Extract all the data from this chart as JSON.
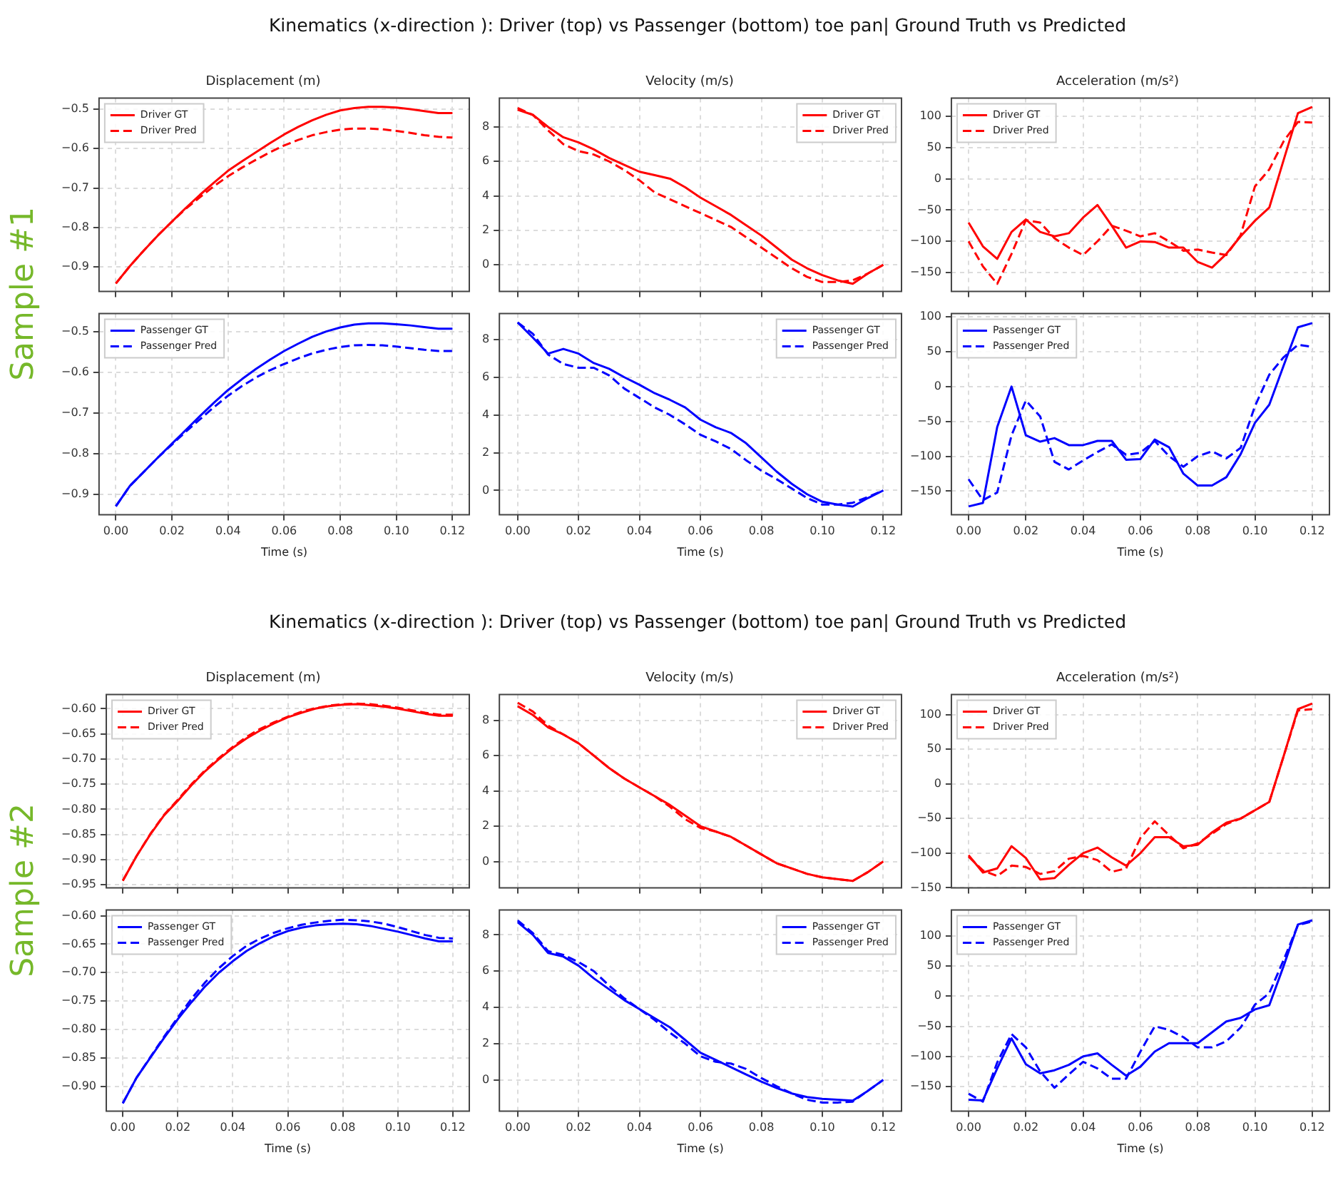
{
  "chart_data": [
    {
      "type": "line",
      "title": "Displacement (m)",
      "annotations": [
        "Kinematics (x-direction ): Driver (top) vs Passenger (bottom) toe pan| Ground Truth vs Predicted",
        "Sample #1"
      ],
      "x": [
        0,
        0.005,
        0.01,
        0.015,
        0.02,
        0.025,
        0.03,
        0.035,
        0.04,
        0.045,
        0.05,
        0.055,
        0.06,
        0.065,
        0.07,
        0.075,
        0.08,
        0.085,
        0.09,
        0.095,
        0.1,
        0.105,
        0.11,
        0.115,
        0.12
      ],
      "xlim": [
        -0.006,
        0.126
      ],
      "tick_labels": "y",
      "ylim": [
        -0.962,
        -0.472
      ],
      "yticks": [
        {
          "value": -0.9,
          "label": "−0.9"
        },
        {
          "value": -0.8,
          "label": "−0.8"
        },
        {
          "value": -0.7,
          "label": "−0.7"
        },
        {
          "value": -0.6,
          "label": "−0.6"
        },
        {
          "value": -0.5,
          "label": "−0.5"
        }
      ],
      "grid": true,
      "legend": "top left",
      "series": [
        {
          "name": "Driver GT",
          "color": "#ff0000",
          "line_style": "solid",
          "values": [
            -0.942,
            -0.898,
            -0.858,
            -0.82,
            -0.785,
            -0.75,
            -0.717,
            -0.686,
            -0.656,
            -0.632,
            -0.609,
            -0.586,
            -0.564,
            -0.545,
            -0.528,
            -0.514,
            -0.503,
            -0.497,
            -0.494,
            -0.494,
            -0.496,
            -0.5,
            -0.505,
            -0.51,
            -0.51
          ]
        },
        {
          "name": "Driver Pred",
          "color": "#ff0000",
          "line_style": "dashed",
          "values": [
            -0.942,
            -0.898,
            -0.858,
            -0.82,
            -0.785,
            -0.752,
            -0.723,
            -0.695,
            -0.67,
            -0.648,
            -0.628,
            -0.609,
            -0.592,
            -0.578,
            -0.566,
            -0.558,
            -0.552,
            -0.549,
            -0.549,
            -0.551,
            -0.555,
            -0.56,
            -0.566,
            -0.57,
            -0.572
          ]
        }
      ]
    },
    {
      "type": "line",
      "title": "Velocity (m/s)",
      "x": [
        0,
        0.005,
        0.01,
        0.015,
        0.02,
        0.025,
        0.03,
        0.035,
        0.04,
        0.045,
        0.05,
        0.055,
        0.06,
        0.065,
        0.07,
        0.075,
        0.08,
        0.085,
        0.09,
        0.095,
        0.1,
        0.105,
        0.11,
        0.115,
        0.12
      ],
      "xlim": [
        -0.006,
        0.126
      ],
      "tick_labels": "y",
      "ylim": [
        -1.54,
        9.67
      ],
      "yticks": [
        0,
        2,
        4,
        6,
        8
      ],
      "grid": true,
      "legend": "top right",
      "series": [
        {
          "name": "Driver GT",
          "color": "#ff0000",
          "line_style": "solid",
          "values": [
            9.0,
            8.7,
            8.0,
            7.4,
            7.1,
            6.7,
            6.2,
            5.8,
            5.4,
            5.2,
            5.0,
            4.5,
            3.9,
            3.4,
            2.9,
            2.3,
            1.7,
            1.0,
            0.3,
            -0.2,
            -0.6,
            -0.9,
            -1.1,
            -0.5,
            0.0
          ]
        },
        {
          "name": "Driver Pred",
          "color": "#ff0000",
          "line_style": "dashed",
          "values": [
            9.1,
            8.7,
            7.8,
            7.0,
            6.6,
            6.4,
            6.0,
            5.5,
            4.9,
            4.2,
            3.8,
            3.4,
            3.0,
            2.6,
            2.2,
            1.6,
            1.0,
            0.4,
            -0.2,
            -0.7,
            -1.0,
            -1.0,
            -0.9,
            -0.5,
            0.0
          ]
        }
      ]
    },
    {
      "type": "line",
      "title": "Acceleration (m/s²)",
      "x": [
        0,
        0.005,
        0.01,
        0.015,
        0.02,
        0.025,
        0.03,
        0.035,
        0.04,
        0.045,
        0.05,
        0.055,
        0.06,
        0.065,
        0.07,
        0.075,
        0.08,
        0.085,
        0.09,
        0.095,
        0.1,
        0.105,
        0.11,
        0.115,
        0.12
      ],
      "xlim": [
        -0.006,
        0.126
      ],
      "tick_labels": "y",
      "ylim": [
        -180,
        129
      ],
      "yticks": [
        {
          "value": -150,
          "label": "−150"
        },
        {
          "value": -100,
          "label": "−100"
        },
        {
          "value": -50,
          "label": "−50"
        },
        0,
        50,
        100
      ],
      "grid": true,
      "legend": "top left",
      "series": [
        {
          "name": "Driver GT",
          "color": "#ff0000",
          "line_style": "solid",
          "values": [
            -70,
            -108,
            -128,
            -85,
            -65,
            -85,
            -92,
            -87,
            -62,
            -42,
            -75,
            -110,
            -100,
            -101,
            -110,
            -110,
            -133,
            -142,
            -120,
            -92,
            -67,
            -46,
            30,
            105,
            115
          ]
        },
        {
          "name": "Driver Pred",
          "color": "#ff0000",
          "line_style": "dashed",
          "values": [
            -100,
            -140,
            -168,
            -120,
            -66,
            -70,
            -95,
            -110,
            -122,
            -100,
            -75,
            -83,
            -92,
            -87,
            -100,
            -115,
            -113,
            -118,
            -122,
            -90,
            -12,
            15,
            60,
            91,
            90
          ]
        }
      ]
    },
    {
      "type": "line",
      "xlabel": "Time (s)",
      "x": [
        0,
        0.005,
        0.01,
        0.015,
        0.02,
        0.025,
        0.03,
        0.035,
        0.04,
        0.045,
        0.05,
        0.055,
        0.06,
        0.065,
        0.07,
        0.075,
        0.08,
        0.085,
        0.09,
        0.095,
        0.1,
        0.105,
        0.11,
        0.115,
        0.12
      ],
      "xlim": [
        -0.006,
        0.126
      ],
      "xticks": [
        {
          "value": 0,
          "label": "0.00"
        },
        {
          "value": 0.02,
          "label": "0.02"
        },
        {
          "value": 0.04,
          "label": "0.04"
        },
        {
          "value": 0.06,
          "label": "0.06"
        },
        {
          "value": 0.08,
          "label": "0.08"
        },
        {
          "value": 0.1,
          "label": "0.10"
        },
        {
          "value": 0.12,
          "label": "0.12"
        }
      ],
      "ylim": [
        -0.951,
        -0.456
      ],
      "yticks": [
        {
          "value": -0.9,
          "label": "−0.9"
        },
        {
          "value": -0.8,
          "label": "−0.8"
        },
        {
          "value": -0.7,
          "label": "−0.7"
        },
        {
          "value": -0.6,
          "label": "−0.6"
        },
        {
          "value": -0.5,
          "label": "−0.5"
        }
      ],
      "grid": true,
      "legend": "top left",
      "series": [
        {
          "name": "Passenger GT",
          "color": "#0000ff",
          "line_style": "solid",
          "values": [
            -0.93,
            -0.88,
            -0.845,
            -0.81,
            -0.776,
            -0.742,
            -0.708,
            -0.675,
            -0.644,
            -0.617,
            -0.592,
            -0.569,
            -0.548,
            -0.53,
            -0.513,
            -0.5,
            -0.49,
            -0.483,
            -0.48,
            -0.48,
            -0.482,
            -0.485,
            -0.489,
            -0.493,
            -0.493
          ]
        },
        {
          "name": "Passenger Pred",
          "color": "#0000ff",
          "line_style": "dashed",
          "values": [
            -0.93,
            -0.88,
            -0.845,
            -0.81,
            -0.778,
            -0.746,
            -0.716,
            -0.686,
            -0.658,
            -0.634,
            -0.613,
            -0.595,
            -0.58,
            -0.566,
            -0.554,
            -0.545,
            -0.538,
            -0.534,
            -0.533,
            -0.534,
            -0.537,
            -0.541,
            -0.545,
            -0.548,
            -0.548
          ]
        }
      ]
    },
    {
      "type": "line",
      "xlabel": "Time (s)",
      "x": [
        0,
        0.005,
        0.01,
        0.015,
        0.02,
        0.025,
        0.03,
        0.035,
        0.04,
        0.045,
        0.05,
        0.055,
        0.06,
        0.065,
        0.07,
        0.075,
        0.08,
        0.085,
        0.09,
        0.095,
        0.1,
        0.105,
        0.11,
        0.115,
        0.12
      ],
      "xlim": [
        -0.006,
        0.126
      ],
      "xticks": [
        {
          "value": 0,
          "label": "0.00"
        },
        {
          "value": 0.02,
          "label": "0.02"
        },
        {
          "value": 0.04,
          "label": "0.04"
        },
        {
          "value": 0.06,
          "label": "0.06"
        },
        {
          "value": 0.08,
          "label": "0.08"
        },
        {
          "value": 0.1,
          "label": "0.10"
        },
        {
          "value": 0.12,
          "label": "0.12"
        }
      ],
      "ylim": [
        -1.29,
        9.37
      ],
      "yticks": [
        0,
        2,
        4,
        6,
        8
      ],
      "grid": true,
      "legend": "top right",
      "series": [
        {
          "name": "Passenger GT",
          "color": "#0000ff",
          "line_style": "solid",
          "values": [
            8.9,
            8.1,
            7.25,
            7.5,
            7.25,
            6.75,
            6.45,
            6.0,
            5.6,
            5.15,
            4.8,
            4.4,
            3.75,
            3.35,
            3.05,
            2.5,
            1.75,
            1.0,
            0.35,
            -0.2,
            -0.6,
            -0.75,
            -0.85,
            -0.4,
            0.0
          ]
        },
        {
          "name": "Passenger Pred",
          "color": "#0000ff",
          "line_style": "dashed",
          "values": [
            8.9,
            8.3,
            7.2,
            6.7,
            6.5,
            6.5,
            6.1,
            5.4,
            4.9,
            4.4,
            4.0,
            3.5,
            2.95,
            2.6,
            2.2,
            1.6,
            1.05,
            0.6,
            0.1,
            -0.4,
            -0.75,
            -0.75,
            -0.65,
            -0.35,
            0.0
          ]
        }
      ]
    },
    {
      "type": "line",
      "xlabel": "Time (s)",
      "x": [
        0,
        0.005,
        0.01,
        0.015,
        0.02,
        0.025,
        0.03,
        0.035,
        0.04,
        0.045,
        0.05,
        0.055,
        0.06,
        0.065,
        0.07,
        0.075,
        0.08,
        0.085,
        0.09,
        0.095,
        0.1,
        0.105,
        0.11,
        0.115,
        0.12
      ],
      "xlim": [
        -0.006,
        0.126
      ],
      "xticks": [
        {
          "value": 0,
          "label": "0.00"
        },
        {
          "value": 0.02,
          "label": "0.02"
        },
        {
          "value": 0.04,
          "label": "0.04"
        },
        {
          "value": 0.06,
          "label": "0.06"
        },
        {
          "value": 0.08,
          "label": "0.08"
        },
        {
          "value": 0.1,
          "label": "0.10"
        },
        {
          "value": 0.12,
          "label": "0.12"
        }
      ],
      "ylim": [
        -184,
        104.6
      ],
      "yticks": [
        {
          "value": -150,
          "label": "−150"
        },
        {
          "value": -100,
          "label": "−100"
        },
        {
          "value": -50,
          "label": "−50"
        },
        0,
        50,
        100
      ],
      "grid": true,
      "legend": "top left",
      "series": [
        {
          "name": "Passenger GT",
          "color": "#0000ff",
          "line_style": "solid",
          "values": [
            -172,
            -167,
            -58,
            0,
            -70,
            -79,
            -74,
            -84,
            -84,
            -78,
            -78,
            -105,
            -104,
            -76,
            -87,
            -125,
            -142,
            -142,
            -130,
            -97,
            -52,
            -26,
            30,
            85,
            91
          ]
        },
        {
          "name": "Passenger Pred",
          "color": "#0000ff",
          "line_style": "dashed",
          "values": [
            -133,
            -163,
            -152,
            -70,
            -20,
            -43,
            -108,
            -119,
            -106,
            -94,
            -83,
            -98,
            -95,
            -78,
            -100,
            -115,
            -100,
            -93,
            -103,
            -88,
            -28,
            17,
            42,
            60,
            57
          ]
        }
      ]
    },
    {
      "type": "line",
      "title": "Displacement (m)",
      "annotations": [
        "Kinematics (x-direction ): Driver (top) vs Passenger (bottom) toe pan| Ground Truth vs Predicted",
        "Sample #2"
      ],
      "x": [
        0,
        0.005,
        0.01,
        0.015,
        0.02,
        0.025,
        0.03,
        0.035,
        0.04,
        0.045,
        0.05,
        0.055,
        0.06,
        0.065,
        0.07,
        0.075,
        0.08,
        0.085,
        0.09,
        0.095,
        0.1,
        0.105,
        0.11,
        0.115,
        0.12
      ],
      "xlim": [
        -0.006,
        0.126
      ],
      "tick_labels": "y",
      "ylim": [
        -0.956,
        -0.572
      ],
      "yticks": [
        {
          "value": -0.95,
          "label": "−0.95"
        },
        {
          "value": -0.9,
          "label": "−0.90"
        },
        {
          "value": -0.85,
          "label": "−0.85"
        },
        {
          "value": -0.8,
          "label": "−0.80"
        },
        {
          "value": -0.75,
          "label": "−0.75"
        },
        {
          "value": -0.7,
          "label": "−0.70"
        },
        {
          "value": -0.65,
          "label": "−0.65"
        },
        {
          "value": -0.6,
          "label": "−0.60"
        }
      ],
      "grid": true,
      "legend": "top left",
      "series": [
        {
          "name": "Driver GT",
          "color": "#ff0000",
          "line_style": "solid",
          "values": [
            -0.942,
            -0.893,
            -0.85,
            -0.812,
            -0.783,
            -0.752,
            -0.724,
            -0.7,
            -0.678,
            -0.659,
            -0.643,
            -0.629,
            -0.617,
            -0.608,
            -0.6,
            -0.595,
            -0.592,
            -0.591,
            -0.593,
            -0.596,
            -0.6,
            -0.605,
            -0.61,
            -0.614,
            -0.614
          ]
        },
        {
          "name": "Driver Pred",
          "color": "#ff0000",
          "line_style": "dashed",
          "values": [
            -0.942,
            -0.893,
            -0.849,
            -0.811,
            -0.781,
            -0.75,
            -0.722,
            -0.698,
            -0.676,
            -0.656,
            -0.64,
            -0.627,
            -0.616,
            -0.606,
            -0.599,
            -0.594,
            -0.591,
            -0.59,
            -0.591,
            -0.594,
            -0.598,
            -0.603,
            -0.608,
            -0.612,
            -0.612
          ]
        }
      ]
    },
    {
      "type": "line",
      "title": "Velocity (m/s)",
      "x": [
        0,
        0.005,
        0.01,
        0.015,
        0.02,
        0.025,
        0.03,
        0.035,
        0.04,
        0.045,
        0.05,
        0.055,
        0.06,
        0.065,
        0.07,
        0.075,
        0.08,
        0.085,
        0.09,
        0.095,
        0.1,
        0.105,
        0.11,
        0.115,
        0.12
      ],
      "xlim": [
        -0.006,
        0.126
      ],
      "tick_labels": "y",
      "ylim": [
        -1.49,
        9.46
      ],
      "yticks": [
        0,
        2,
        4,
        6,
        8
      ],
      "grid": true,
      "legend": "top right",
      "series": [
        {
          "name": "Driver GT",
          "color": "#ff0000",
          "line_style": "solid",
          "values": [
            8.8,
            8.3,
            7.6,
            7.2,
            6.7,
            6.0,
            5.3,
            4.7,
            4.2,
            3.7,
            3.2,
            2.6,
            2.0,
            1.7,
            1.4,
            0.9,
            0.4,
            -0.1,
            -0.4,
            -0.7,
            -0.9,
            -1.0,
            -1.1,
            -0.6,
            0.0
          ]
        },
        {
          "name": "Driver Pred",
          "color": "#ff0000",
          "line_style": "dashed",
          "values": [
            9.0,
            8.5,
            7.7,
            7.2,
            6.7,
            6.0,
            5.3,
            4.7,
            4.2,
            3.7,
            3.1,
            2.4,
            1.9,
            1.7,
            1.4,
            0.9,
            0.4,
            -0.1,
            -0.4,
            -0.7,
            -0.9,
            -1.0,
            -1.1,
            -0.6,
            0.0
          ]
        }
      ]
    },
    {
      "type": "line",
      "title": "Acceleration (m/s²)",
      "x": [
        0,
        0.005,
        0.01,
        0.015,
        0.02,
        0.025,
        0.03,
        0.035,
        0.04,
        0.045,
        0.05,
        0.055,
        0.06,
        0.065,
        0.07,
        0.075,
        0.08,
        0.085,
        0.09,
        0.095,
        0.1,
        0.105,
        0.11,
        0.115,
        0.12
      ],
      "xlim": [
        -0.006,
        0.126
      ],
      "tick_labels": "y",
      "ylim": [
        -150,
        129
      ],
      "yticks": [
        {
          "value": -150,
          "label": "−150"
        },
        {
          "value": -100,
          "label": "−100"
        },
        {
          "value": -50,
          "label": "−50"
        },
        0,
        50,
        100
      ],
      "grid": true,
      "legend": "top left",
      "series": [
        {
          "name": "Driver GT",
          "color": "#ff0000",
          "line_style": "solid",
          "values": [
            -103,
            -128,
            -122,
            -90,
            -107,
            -138,
            -136,
            -117,
            -100,
            -92,
            -106,
            -118,
            -100,
            -77,
            -77,
            -90,
            -88,
            -70,
            -56,
            -50,
            -38,
            -26,
            40,
            108,
            116
          ]
        },
        {
          "name": "Driver Pred",
          "color": "#ff0000",
          "line_style": "dashed",
          "values": [
            -105,
            -125,
            -133,
            -118,
            -120,
            -130,
            -126,
            -108,
            -104,
            -110,
            -127,
            -122,
            -78,
            -54,
            -74,
            -93,
            -86,
            -72,
            -58,
            -50,
            -38,
            -26,
            40,
            106,
            108
          ]
        }
      ]
    },
    {
      "type": "line",
      "xlabel": "Time (s)",
      "x": [
        0,
        0.005,
        0.01,
        0.015,
        0.02,
        0.025,
        0.03,
        0.035,
        0.04,
        0.045,
        0.05,
        0.055,
        0.06,
        0.065,
        0.07,
        0.075,
        0.08,
        0.085,
        0.09,
        0.095,
        0.1,
        0.105,
        0.11,
        0.115,
        0.12
      ],
      "xlim": [
        -0.006,
        0.126
      ],
      "xticks": [
        {
          "value": 0,
          "label": "0.00"
        },
        {
          "value": 0.02,
          "label": "0.02"
        },
        {
          "value": 0.04,
          "label": "0.04"
        },
        {
          "value": 0.06,
          "label": "0.06"
        },
        {
          "value": 0.08,
          "label": "0.08"
        },
        {
          "value": 0.1,
          "label": "0.10"
        },
        {
          "value": 0.12,
          "label": "0.12"
        }
      ],
      "ylim": [
        -0.944,
        -0.59
      ],
      "yticks": [
        {
          "value": -0.9,
          "label": "−0.90"
        },
        {
          "value": -0.85,
          "label": "−0.85"
        },
        {
          "value": -0.8,
          "label": "−0.80"
        },
        {
          "value": -0.75,
          "label": "−0.75"
        },
        {
          "value": -0.7,
          "label": "−0.70"
        },
        {
          "value": -0.65,
          "label": "−0.65"
        },
        {
          "value": -0.6,
          "label": "−0.60"
        }
      ],
      "grid": true,
      "legend": "top left",
      "series": [
        {
          "name": "Passenger GT",
          "color": "#0000ff",
          "line_style": "solid",
          "values": [
            -0.93,
            -0.885,
            -0.85,
            -0.815,
            -0.782,
            -0.752,
            -0.724,
            -0.7,
            -0.68,
            -0.662,
            -0.648,
            -0.636,
            -0.627,
            -0.621,
            -0.617,
            -0.615,
            -0.614,
            -0.615,
            -0.618,
            -0.623,
            -0.628,
            -0.634,
            -0.64,
            -0.645,
            -0.645
          ]
        },
        {
          "name": "Passenger Pred",
          "color": "#0000ff",
          "line_style": "dashed",
          "values": [
            -0.93,
            -0.885,
            -0.849,
            -0.813,
            -0.779,
            -0.746,
            -0.717,
            -0.692,
            -0.671,
            -0.653,
            -0.64,
            -0.63,
            -0.622,
            -0.616,
            -0.612,
            -0.609,
            -0.607,
            -0.608,
            -0.61,
            -0.614,
            -0.62,
            -0.627,
            -0.634,
            -0.639,
            -0.64
          ]
        }
      ]
    },
    {
      "type": "line",
      "xlabel": "Time (s)",
      "x": [
        0,
        0.005,
        0.01,
        0.015,
        0.02,
        0.025,
        0.03,
        0.035,
        0.04,
        0.045,
        0.05,
        0.055,
        0.06,
        0.065,
        0.07,
        0.075,
        0.08,
        0.085,
        0.09,
        0.095,
        0.1,
        0.105,
        0.11,
        0.115,
        0.12
      ],
      "xlim": [
        -0.006,
        0.126
      ],
      "xticks": [
        {
          "value": 0,
          "label": "0.00"
        },
        {
          "value": 0.02,
          "label": "0.02"
        },
        {
          "value": 0.04,
          "label": "0.04"
        },
        {
          "value": 0.06,
          "label": "0.06"
        },
        {
          "value": 0.08,
          "label": "0.08"
        },
        {
          "value": 0.1,
          "label": "0.10"
        },
        {
          "value": 0.12,
          "label": "0.12"
        }
      ],
      "ylim": [
        -1.73,
        9.37
      ],
      "yticks": [
        0,
        2,
        4,
        6,
        8
      ],
      "grid": true,
      "legend": "top right",
      "series": [
        {
          "name": "Passenger GT",
          "color": "#0000ff",
          "line_style": "solid",
          "values": [
            8.7,
            8.0,
            7.0,
            6.8,
            6.3,
            5.6,
            5.0,
            4.4,
            3.9,
            3.4,
            2.9,
            2.2,
            1.5,
            1.1,
            0.7,
            0.3,
            -0.1,
            -0.45,
            -0.75,
            -0.95,
            -1.05,
            -1.1,
            -1.15,
            -0.6,
            0.0
          ]
        },
        {
          "name": "Passenger Pred",
          "color": "#0000ff",
          "line_style": "dashed",
          "values": [
            8.8,
            8.1,
            7.1,
            6.9,
            6.5,
            6.0,
            5.2,
            4.5,
            3.9,
            3.3,
            2.6,
            2.0,
            1.3,
            1.0,
            0.9,
            0.6,
            0.1,
            -0.35,
            -0.75,
            -1.1,
            -1.25,
            -1.25,
            -1.2,
            -0.6,
            0.0
          ]
        }
      ]
    },
    {
      "type": "line",
      "xlabel": "Time (s)",
      "x": [
        0,
        0.005,
        0.01,
        0.015,
        0.02,
        0.025,
        0.03,
        0.035,
        0.04,
        0.045,
        0.05,
        0.055,
        0.06,
        0.065,
        0.07,
        0.075,
        0.08,
        0.085,
        0.09,
        0.095,
        0.1,
        0.105,
        0.11,
        0.115,
        0.12
      ],
      "xlim": [
        -0.006,
        0.126
      ],
      "xticks": [
        {
          "value": 0,
          "label": "0.00"
        },
        {
          "value": 0.02,
          "label": "0.02"
        },
        {
          "value": 0.04,
          "label": "0.04"
        },
        {
          "value": 0.06,
          "label": "0.06"
        },
        {
          "value": 0.08,
          "label": "0.08"
        },
        {
          "value": 0.1,
          "label": "0.10"
        },
        {
          "value": 0.12,
          "label": "0.12"
        }
      ],
      "ylim": [
        -191,
        143
      ],
      "yticks": [
        {
          "value": -150,
          "label": "−150"
        },
        {
          "value": -100,
          "label": "−100"
        },
        {
          "value": -50,
          "label": "−50"
        },
        0,
        50,
        100
      ],
      "grid": true,
      "legend": "top left",
      "series": [
        {
          "name": "Passenger GT",
          "color": "#0000ff",
          "line_style": "solid",
          "values": [
            -172,
            -173,
            -120,
            -70,
            -113,
            -128,
            -123,
            -114,
            -100,
            -95,
            -114,
            -132,
            -117,
            -92,
            -78,
            -78,
            -78,
            -60,
            -42,
            -36,
            -22,
            -15,
            50,
            119,
            126
          ]
        },
        {
          "name": "Passenger Pred",
          "color": "#0000ff",
          "line_style": "dashed",
          "values": [
            -162,
            -175,
            -110,
            -63,
            -85,
            -125,
            -152,
            -130,
            -109,
            -120,
            -137,
            -137,
            -92,
            -50,
            -56,
            -68,
            -85,
            -85,
            -75,
            -52,
            -14,
            5,
            60,
            118,
            124
          ]
        }
      ]
    }
  ]
}
